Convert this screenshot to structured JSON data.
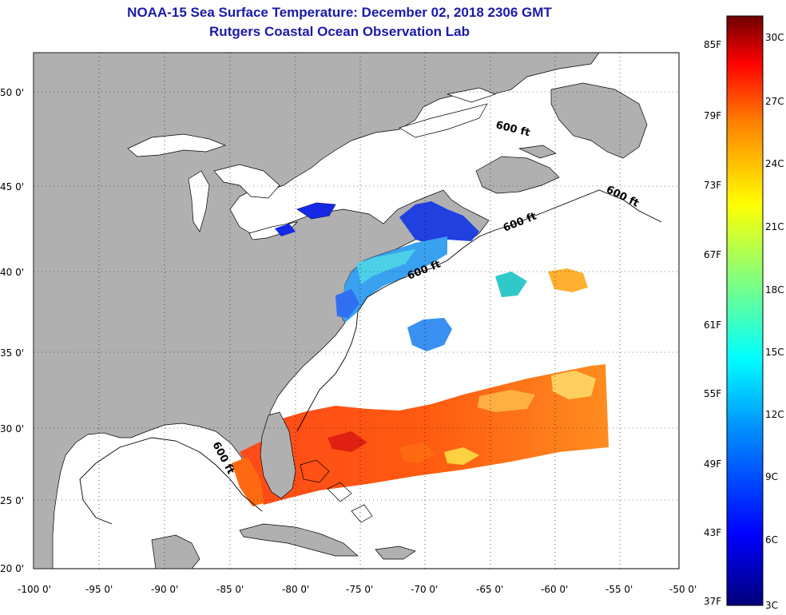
{
  "title": "NOAA-15 Sea Surface Temperature:  December 02, 2018 2306 GMT",
  "subtitle": "Rutgers Coastal Ocean Observation Lab",
  "map": {
    "lat_labels": [
      "50 0'",
      "45 0'",
      "40 0'",
      "35 0'",
      "30 0'",
      "25 0'",
      "20 0'"
    ],
    "lon_labels": [
      "-100 0'",
      "-95 0'",
      "-90 0'",
      "-85 0'",
      "-80 0'",
      "-75 0'",
      "-70 0'",
      "-65 0'",
      "-60 0'",
      "-55 0'",
      "-50 0'"
    ],
    "isobath_labels": [
      "600 ft",
      "600 ft",
      "600 ft",
      "600 ft",
      "600 ft"
    ],
    "land_color": "#b0b0b0",
    "ocean_color": "#ffffff",
    "grid": "dotted"
  },
  "colorbar": {
    "fahrenheit": [
      "85F",
      "79F",
      "73F",
      "67F",
      "61F",
      "55F",
      "49F",
      "43F",
      "37F"
    ],
    "celsius": [
      "30C",
      "27C",
      "24C",
      "21C",
      "18C",
      "15C",
      "12C",
      "9C",
      "6C",
      "3C"
    ],
    "colors": [
      "#700000",
      "#ff0000",
      "#ff8c00",
      "#ffff00",
      "#7fff7f",
      "#00ffff",
      "#0080ff",
      "#0000ff",
      "#00008b"
    ]
  }
}
